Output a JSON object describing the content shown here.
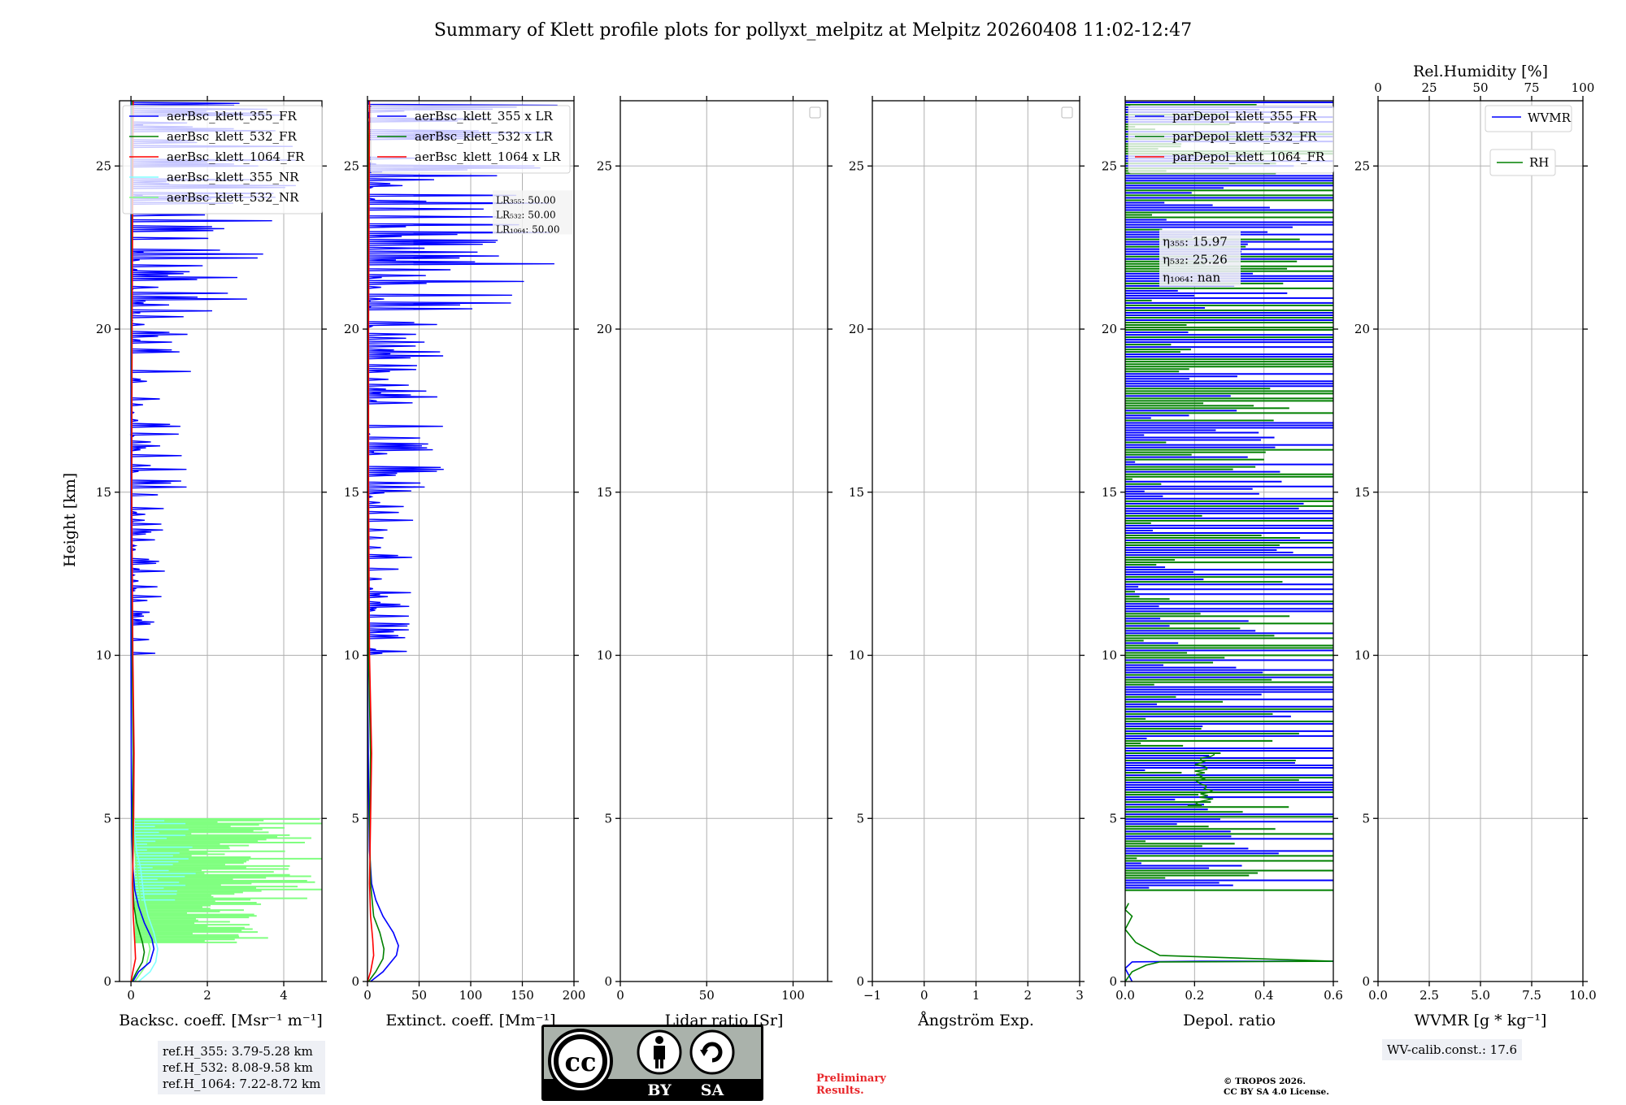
{
  "title": "Summary of Klett profile plots for pollyxt_melpitz at Melpitz 20260408 11:02-12:47",
  "colors": {
    "c355": "#0000ff",
    "c532": "#008000",
    "c1064": "#ff0000",
    "c355nr": "#80ffff",
    "c532nr": "#80ff80",
    "grid": "#b0b0b0"
  },
  "chart_data": [
    {
      "type": "line",
      "id": "backscatter",
      "xlabel": "Backsc. coeff. [Msr⁻¹ m⁻¹]",
      "ylabel": "Height [km]",
      "xlim": [
        -0.3,
        5
      ],
      "ylim": [
        0,
        27
      ],
      "xticks": [
        0,
        2,
        4
      ],
      "xtick_labels": [
        "0",
        "2",
        "4"
      ],
      "yticks": [
        0,
        5,
        10,
        15,
        20,
        25
      ],
      "ytick_labels": [
        "0",
        "5",
        "10",
        "15",
        "20",
        "25"
      ],
      "legend": [
        "aerBsc_klett_355_FR",
        "aerBsc_klett_532_FR",
        "aerBsc_klett_1064_FR",
        "aerBsc_klett_355_NR",
        "aerBsc_klett_532_NR"
      ],
      "legend_keys": [
        "c355",
        "c532",
        "c1064",
        "c355nr",
        "c532nr"
      ],
      "series": [
        {
          "name": "aerBsc_klett_355_NR",
          "color": "c355nr",
          "points": [
            [
              0.2,
              0
            ],
            [
              0.5,
              0.3
            ],
            [
              0.65,
              0.6
            ],
            [
              0.7,
              1.0
            ],
            [
              0.6,
              1.5
            ],
            [
              0.45,
              2.0
            ],
            [
              0.35,
              2.5
            ],
            [
              0.3,
              3.0
            ],
            [
              0.25,
              3.5
            ],
            [
              0.15,
              4.0
            ],
            [
              0.1,
              4.5
            ],
            [
              0.05,
              5.0
            ]
          ]
        },
        {
          "name": "aerBsc_klett_532_NR",
          "color": "c532nr",
          "points": [
            [
              0.1,
              0
            ],
            [
              0.4,
              0.5
            ],
            [
              0.5,
              1.0
            ],
            [
              0.4,
              1.5
            ],
            [
              0.3,
              2.0
            ],
            [
              0.2,
              3.0
            ],
            [
              0.1,
              4.0
            ],
            [
              0.05,
              5.0
            ]
          ]
        },
        {
          "name": "aerBsc_klett_355_FR",
          "color": "c355",
          "points": [
            [
              0.05,
              0
            ],
            [
              0.2,
              0.3
            ],
            [
              0.5,
              0.6
            ],
            [
              0.6,
              1.0
            ],
            [
              0.55,
              1.3
            ],
            [
              0.35,
              1.8
            ],
            [
              0.2,
              2.3
            ],
            [
              0.1,
              2.8
            ],
            [
              0.05,
              3.5
            ],
            [
              0.02,
              4.5
            ],
            [
              0.01,
              6
            ],
            [
              0,
              10
            ],
            [
              0,
              15
            ],
            [
              0,
              20
            ],
            [
              0,
              27
            ]
          ]
        },
        {
          "name": "aerBsc_klett_532_FR",
          "color": "c532",
          "points": [
            [
              0.02,
              0
            ],
            [
              0.15,
              0.3
            ],
            [
              0.3,
              0.6
            ],
            [
              0.35,
              0.9
            ],
            [
              0.3,
              1.2
            ],
            [
              0.15,
              1.8
            ],
            [
              0.08,
              2.3
            ],
            [
              0.05,
              3.0
            ],
            [
              0.04,
              5
            ],
            [
              0.06,
              7
            ],
            [
              0.03,
              10
            ],
            [
              0.02,
              15
            ],
            [
              0.01,
              20
            ],
            [
              0.03,
              25
            ],
            [
              0.02,
              27
            ]
          ]
        },
        {
          "name": "aerBsc_klett_1064_FR",
          "color": "c1064",
          "points": [
            [
              0,
              0
            ],
            [
              0.05,
              0.3
            ],
            [
              0.12,
              0.7
            ],
            [
              0.1,
              1.2
            ],
            [
              0.06,
              2
            ],
            [
              0.04,
              3
            ],
            [
              0.07,
              5
            ],
            [
              0.08,
              7
            ],
            [
              0.05,
              10
            ],
            [
              0.02,
              15
            ],
            [
              0.03,
              20
            ],
            [
              0.05,
              25
            ],
            [
              0.06,
              27
            ]
          ]
        }
      ]
    },
    {
      "type": "line",
      "id": "extinction",
      "xlabel": "Extinct. coeff. [Mm⁻¹]",
      "xlim": [
        0,
        200
      ],
      "ylim": [
        0,
        27
      ],
      "xticks": [
        0,
        50,
        100,
        150,
        200
      ],
      "xtick_labels": [
        "0",
        "50",
        "100",
        "150",
        "200"
      ],
      "yticks": [
        0,
        5,
        10,
        15,
        20,
        25
      ],
      "ytick_labels": [
        "0",
        "5",
        "10",
        "15",
        "20",
        "25"
      ],
      "legend": [
        "aerBsc_klett_355 x LR",
        "aerBsc_klett_532 x LR",
        "aerBsc_klett_1064 x LR"
      ],
      "legend_keys": [
        "c355",
        "c532",
        "c1064"
      ],
      "lr_labels": [
        "LR₃₅₅: 50.00",
        "LR₅₃₂: 50.00",
        "LR₁₀₆₄: 50.00"
      ],
      "series": [
        {
          "name": "aerBsc_klett_355 x LR",
          "color": "c355",
          "points": [
            [
              3,
              0
            ],
            [
              15,
              0.3
            ],
            [
              28,
              0.8
            ],
            [
              30,
              1.1
            ],
            [
              25,
              1.5
            ],
            [
              15,
              2.0
            ],
            [
              8,
              2.5
            ],
            [
              4,
              3.0
            ],
            [
              2,
              4
            ],
            [
              1,
              6
            ],
            [
              0,
              10
            ],
            [
              0,
              15
            ],
            [
              0,
              20
            ],
            [
              0,
              27
            ]
          ]
        },
        {
          "name": "aerBsc_klett_532 x LR",
          "color": "c532",
          "points": [
            [
              1,
              0
            ],
            [
              8,
              0.3
            ],
            [
              15,
              0.7
            ],
            [
              16,
              1.0
            ],
            [
              12,
              1.5
            ],
            [
              6,
              2.0
            ],
            [
              3,
              3
            ],
            [
              2,
              5
            ],
            [
              3,
              7
            ],
            [
              1,
              10
            ],
            [
              1,
              15
            ],
            [
              0,
              20
            ],
            [
              1,
              25
            ],
            [
              0,
              27
            ]
          ]
        },
        {
          "name": "aerBsc_klett_1064 x LR",
          "color": "c1064",
          "points": [
            [
              0,
              0
            ],
            [
              3,
              0.3
            ],
            [
              6,
              0.8
            ],
            [
              5,
              1.3
            ],
            [
              3,
              2
            ],
            [
              2,
              3
            ],
            [
              3,
              5
            ],
            [
              4,
              7
            ],
            [
              2,
              10
            ],
            [
              1,
              15
            ],
            [
              1,
              20
            ],
            [
              2,
              27
            ]
          ]
        }
      ]
    },
    {
      "type": "line",
      "id": "lidar-ratio",
      "xlabel": "Lidar ratio [Sr]",
      "xlim": [
        0,
        120
      ],
      "ylim": [
        0,
        27
      ],
      "xticks": [
        0,
        50,
        100
      ],
      "xtick_labels": [
        "0",
        "50",
        "100"
      ],
      "yticks": [
        0,
        5,
        10,
        15,
        20,
        25
      ],
      "ytick_labels": [
        "0",
        "5",
        "10",
        "15",
        "20",
        "25"
      ],
      "series": []
    },
    {
      "type": "line",
      "id": "angstrom",
      "xlabel": "Ångström Exp.",
      "xlim": [
        -1,
        3
      ],
      "ylim": [
        0,
        27
      ],
      "xticks": [
        -1,
        0,
        1,
        2,
        3
      ],
      "xtick_labels": [
        "−1",
        "0",
        "1",
        "2",
        "3"
      ],
      "yticks": [
        0,
        5,
        10,
        15,
        20,
        25
      ],
      "ytick_labels": [
        "0",
        "5",
        "10",
        "15",
        "20",
        "25"
      ],
      "series": []
    },
    {
      "type": "line",
      "id": "depolarization",
      "xlabel": "Depol. ratio",
      "xlim": [
        0,
        0.6
      ],
      "ylim": [
        0,
        27
      ],
      "xticks": [
        0,
        0.2,
        0.4,
        0.6
      ],
      "xtick_labels": [
        "0.0",
        "0.2",
        "0.4",
        "0.6"
      ],
      "yticks": [
        0,
        5,
        10,
        15,
        20,
        25
      ],
      "ytick_labels": [
        "0",
        "5",
        "10",
        "15",
        "20",
        "25"
      ],
      "legend": [
        "parDepol_klett_355_FR",
        "parDepol_klett_532_FR",
        "parDepol_klett_1064_FR"
      ],
      "legend_keys": [
        "c355",
        "c532",
        "c1064"
      ],
      "eta_labels": [
        "η₃₅₅: 15.97",
        "η₅₃₂: 25.26",
        "η₁₀₆₄: nan"
      ],
      "series": [
        {
          "name": "parDepol_klett_355_FR",
          "color": "c355",
          "points": [
            [
              0.02,
              0
            ],
            [
              0.01,
              0.2
            ],
            [
              0.0,
              0.4
            ],
            [
              0.02,
              0.6
            ],
            [
              0.22,
              0.62
            ],
            [
              0.6,
              0.62
            ]
          ]
        },
        {
          "name": "parDepol_klett_532_FR",
          "color": "c532",
          "points": [
            [
              0.0,
              0
            ],
            [
              0.02,
              0.3
            ],
            [
              0.06,
              0.5
            ],
            [
              0.1,
              0.6
            ],
            [
              0.6,
              0.62
            ],
            [
              0.1,
              0.8
            ],
            [
              0.03,
              1.2
            ],
            [
              0.0,
              1.6
            ],
            [
              0.02,
              2.0
            ],
            [
              0.0,
              2.2
            ],
            [
              0.01,
              2.4
            ]
          ]
        }
      ]
    },
    {
      "type": "line",
      "id": "wvmr",
      "xlabel": "WVMR [g * kg⁻¹]",
      "x2label": "Rel.Humidity [%]",
      "xlim": [
        0,
        10
      ],
      "ylim": [
        0,
        27
      ],
      "xticks": [
        0,
        2.5,
        5,
        7.5,
        10
      ],
      "xtick_labels": [
        "0.0",
        "2.5",
        "5.0",
        "7.5",
        "10.0"
      ],
      "x2ticks": [
        0,
        25,
        50,
        75,
        100
      ],
      "x2tick_labels": [
        "0",
        "25",
        "50",
        "75",
        "100"
      ],
      "yticks": [
        0,
        5,
        10,
        15,
        20,
        25
      ],
      "ytick_labels": [
        "0",
        "5",
        "10",
        "15",
        "20",
        "25"
      ],
      "legend": [
        "WVMR",
        "RH"
      ],
      "legend_keys": [
        "c355",
        "c532"
      ],
      "series": []
    }
  ],
  "ref_heights": [
    "ref.H_355: 3.79-5.28 km",
    "ref.H_532: 8.08-9.58 km",
    "ref.H_1064: 7.22-8.72 km"
  ],
  "wv_calib": "WV-calib.const.: 17.6",
  "license_badge": {
    "left": "BY",
    "right": "SA",
    "cc": "cc"
  },
  "preliminary": [
    "Preliminary",
    "Results."
  ],
  "copyright": [
    "© TROPOS 2026.",
    "CC BY SA 4.0 License."
  ]
}
